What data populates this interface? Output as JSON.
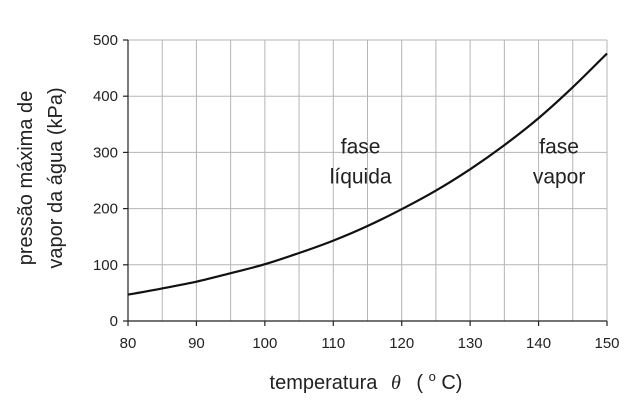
{
  "chart_data": {
    "type": "line",
    "title": "",
    "xlabel": "temperatura",
    "xlabel_symbol": "θ",
    "xlabel_unit_prefix": "(",
    "xlabel_unit_sup": "o",
    "xlabel_unit_suffix": "C)",
    "ylabel_line1": "pressão máxima de",
    "ylabel_line2": "vapor da água (kPa)",
    "xlim": [
      80,
      150
    ],
    "ylim": [
      0,
      500
    ],
    "grid": true,
    "x_ticks": [
      80,
      90,
      100,
      110,
      120,
      130,
      140,
      150
    ],
    "x_tick_labels": [
      "80",
      "90",
      "100",
      "110",
      "120",
      "130",
      "140",
      "150"
    ],
    "y_ticks": [
      0,
      100,
      200,
      300,
      400,
      500
    ],
    "y_tick_labels": [
      "0",
      "100",
      "200",
      "300",
      "400",
      "500"
    ],
    "x_minor_grid": [
      85,
      95,
      105,
      115,
      125,
      135,
      145
    ],
    "series": [
      {
        "x": [
          80,
          85,
          90,
          95,
          100,
          105,
          110,
          115,
          120,
          125,
          130,
          135,
          140,
          145,
          150
        ],
        "y": [
          47,
          58,
          70,
          85,
          101,
          121,
          143,
          169,
          199,
          232,
          270,
          313,
          361,
          416,
          476
        ]
      }
    ],
    "annotations": [
      {
        "lines": [
          "fase",
          "líquida"
        ],
        "x": 114,
        "y": 298
      },
      {
        "lines": [
          "fase",
          "vapor"
        ],
        "x": 143,
        "y": 298
      }
    ]
  }
}
